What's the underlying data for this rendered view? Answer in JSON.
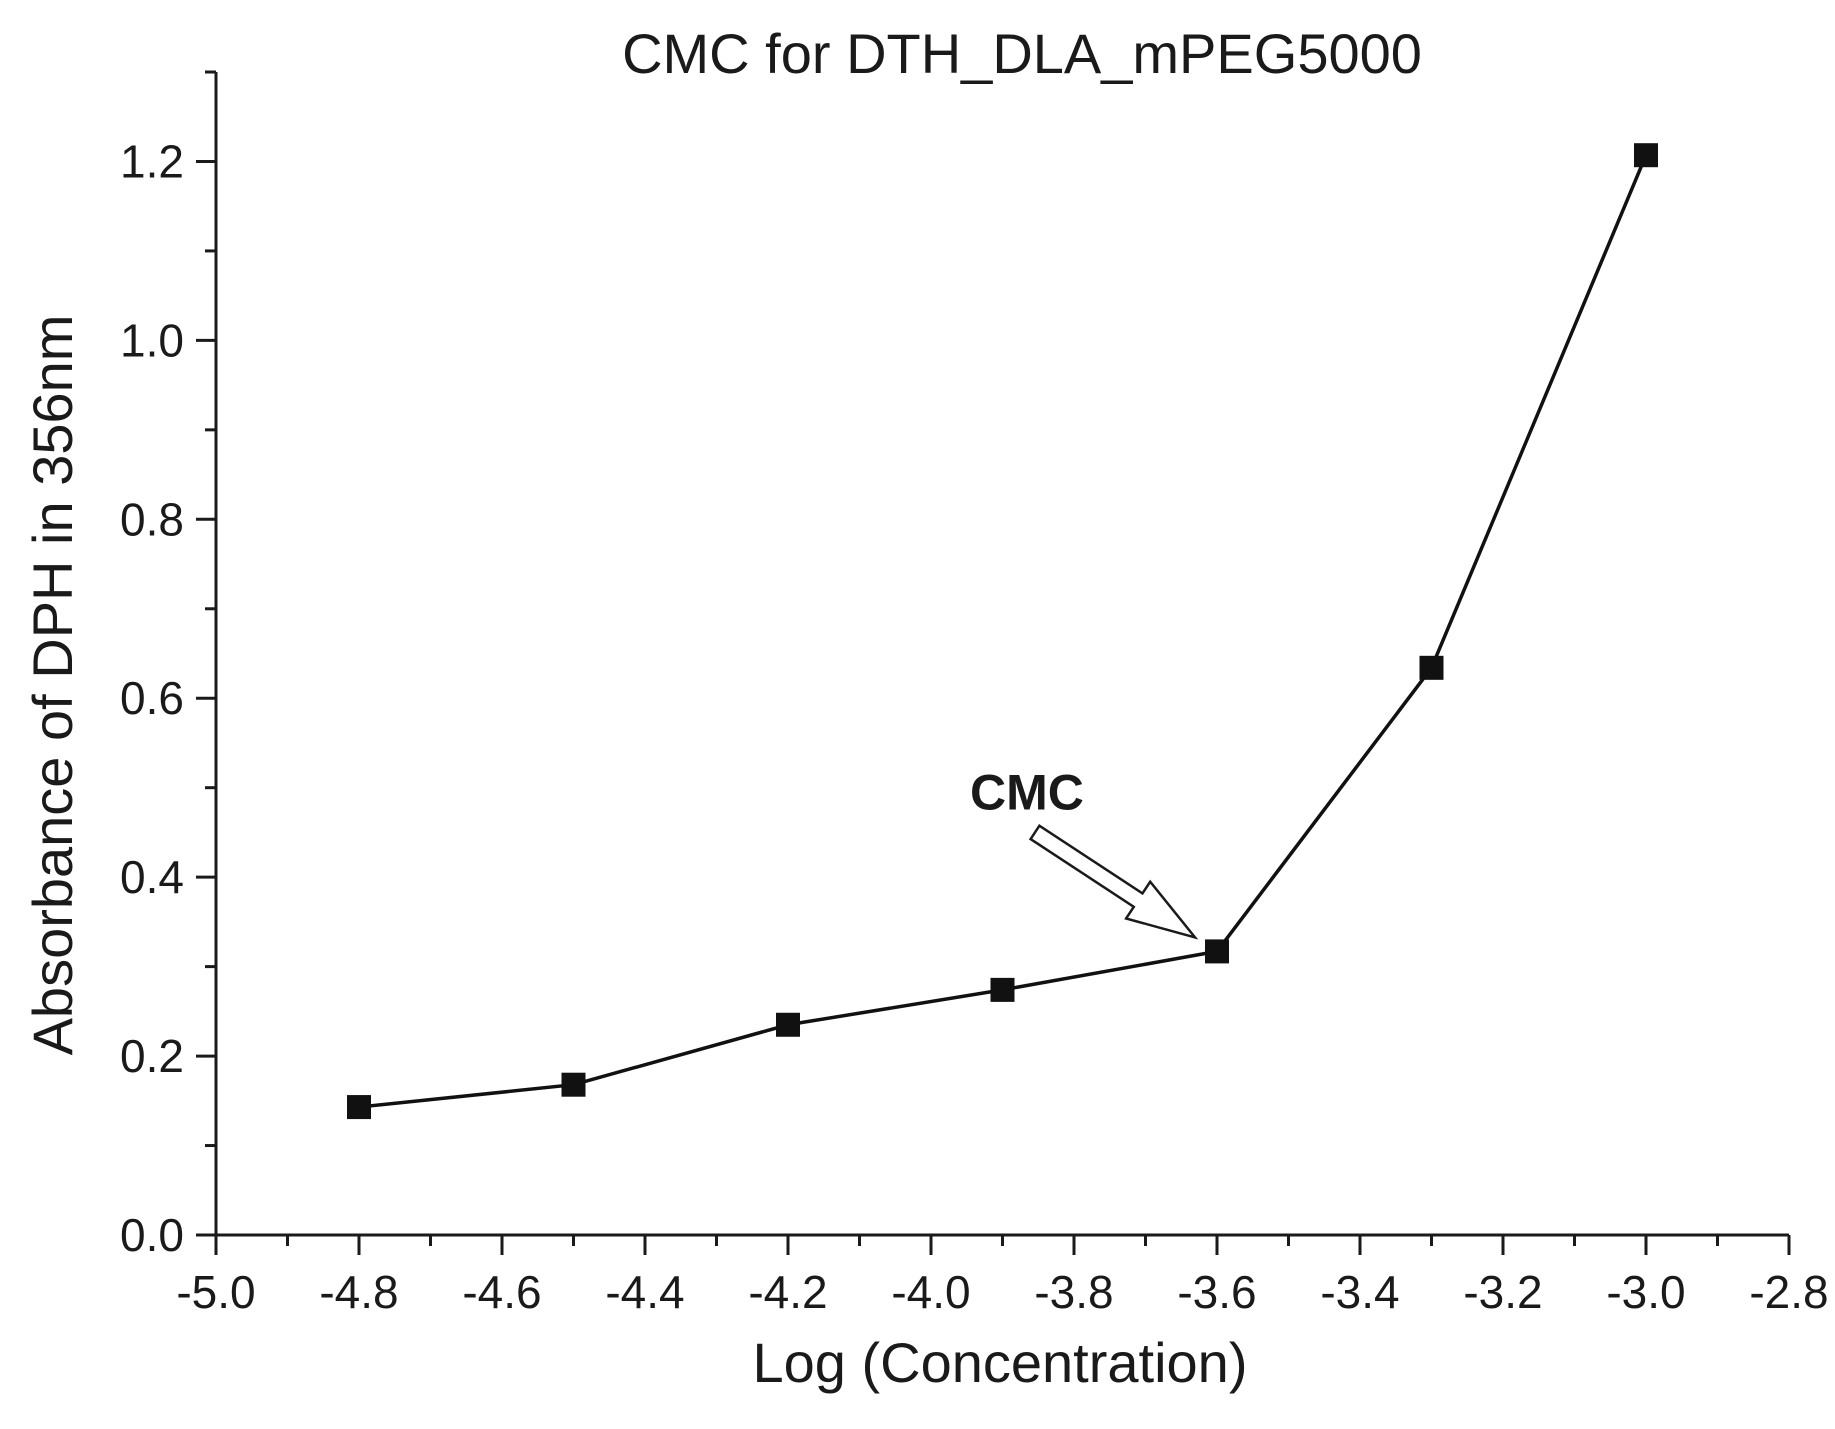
{
  "chart_data": {
    "type": "line",
    "title": "CMC for DTH_DLA_mPEG5000",
    "xlabel": "Log (Concentration)",
    "ylabel": "Absorbance of DPH in 356nm",
    "xlim": [
      -5.0,
      -2.8
    ],
    "ylim": [
      0.0,
      1.3
    ],
    "x_ticks": [
      "-5.0",
      "-4.8",
      "-4.6",
      "-4.4",
      "-4.2",
      "-4.0",
      "-3.8",
      "-3.6",
      "-3.4",
      "-3.2",
      "-3.0",
      "-2.8"
    ],
    "y_ticks": [
      "0.0",
      "0.2",
      "0.4",
      "0.6",
      "0.8",
      "1.0",
      "1.2"
    ],
    "x_tick_values": [
      -5.0,
      -4.8,
      -4.6,
      -4.4,
      -4.2,
      -4.0,
      -3.8,
      -3.6,
      -3.4,
      -3.2,
      -3.0,
      -2.8
    ],
    "y_tick_values": [
      0.0,
      0.2,
      0.4,
      0.6,
      0.8,
      1.0,
      1.2
    ],
    "series": [
      {
        "x": [
          -4.8,
          -4.5,
          -4.2,
          -3.9,
          -3.6,
          -3.3,
          -3.0
        ],
        "y": [
          0.143,
          0.168,
          0.235,
          0.274,
          0.317,
          0.634,
          1.207
        ],
        "marker": "square",
        "color": "#111111"
      }
    ],
    "annotations": [
      {
        "text": "CMC",
        "target_x": -3.6,
        "target_y": 0.317,
        "arrow": "open"
      }
    ],
    "grid": false,
    "legend": "none"
  }
}
